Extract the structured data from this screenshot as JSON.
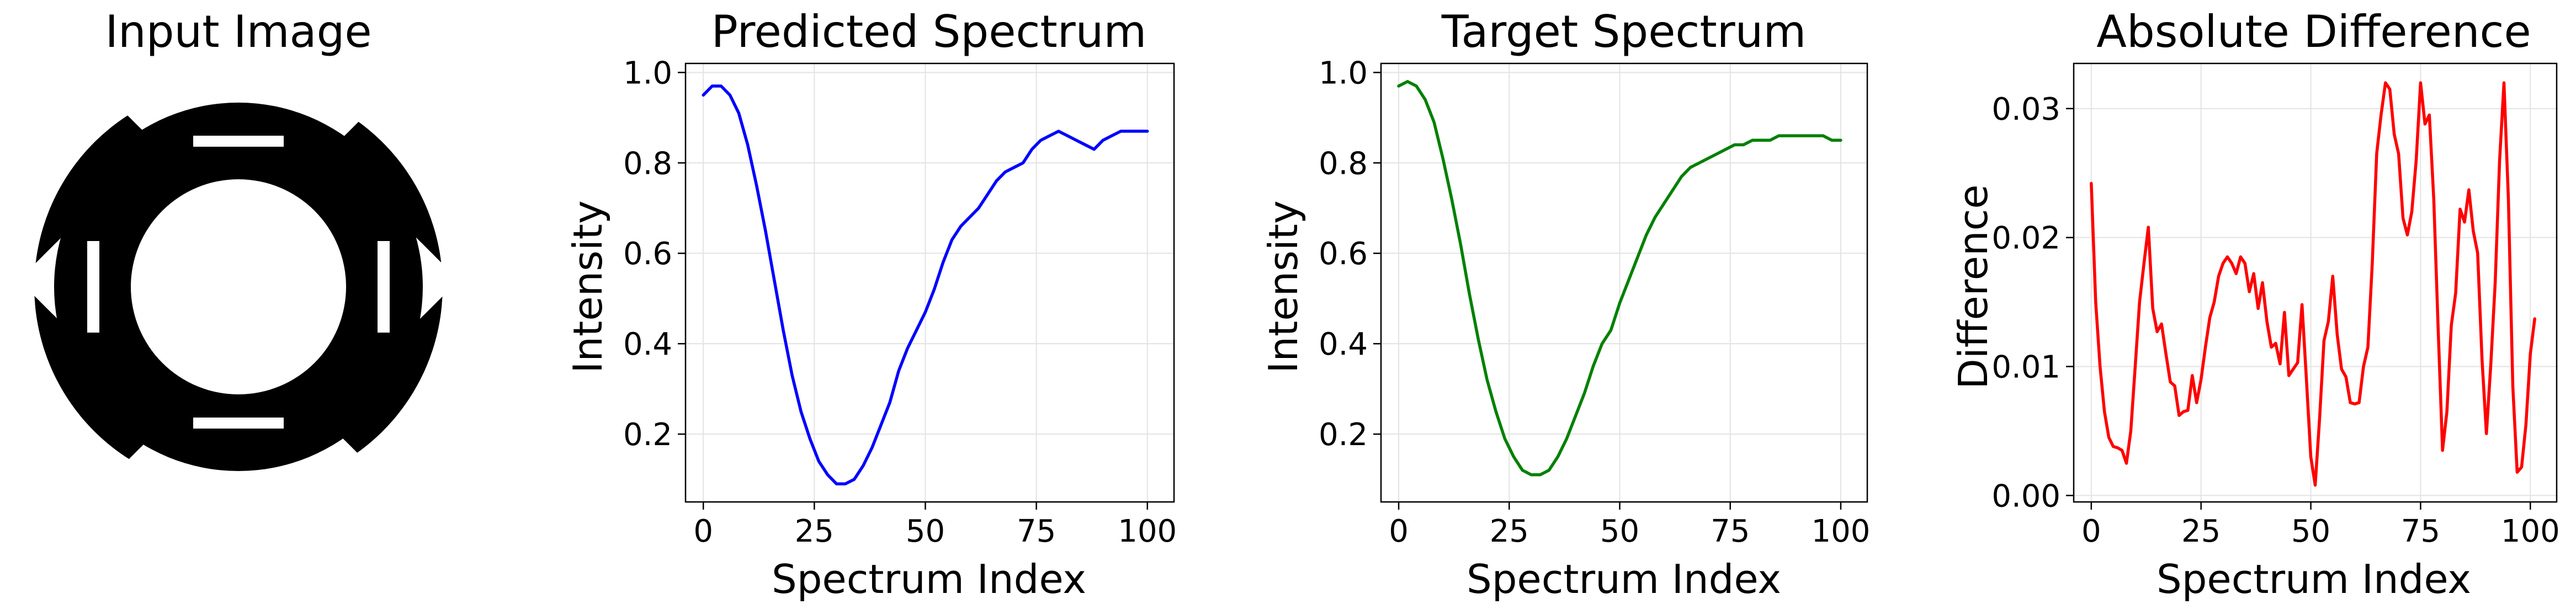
{
  "image_panel": {
    "title": "Input Image"
  },
  "chart_data": [
    {
      "type": "line",
      "title": "Predicted Spectrum",
      "xlabel": "Spectrum Index",
      "ylabel": "Intensity",
      "xlim": [
        -4,
        106
      ],
      "ylim": [
        0.05,
        1.02
      ],
      "xticks": [
        0,
        25,
        50,
        75,
        100
      ],
      "yticks": [
        0.2,
        0.4,
        0.6,
        0.8,
        1.0
      ],
      "ytick_labels": [
        "0.2",
        "0.4",
        "0.6",
        "0.8",
        "1.0"
      ],
      "grid": true,
      "color": "#0000ff",
      "x": [
        0,
        2,
        4,
        6,
        8,
        10,
        12,
        14,
        16,
        18,
        20,
        22,
        24,
        26,
        28,
        30,
        32,
        34,
        36,
        38,
        40,
        42,
        44,
        46,
        48,
        50,
        52,
        54,
        56,
        58,
        60,
        62,
        64,
        66,
        68,
        70,
        72,
        74,
        76,
        78,
        80,
        82,
        84,
        86,
        88,
        90,
        92,
        94,
        96,
        98,
        100
      ],
      "y": [
        0.95,
        0.97,
        0.97,
        0.95,
        0.91,
        0.84,
        0.75,
        0.65,
        0.54,
        0.43,
        0.33,
        0.25,
        0.19,
        0.14,
        0.11,
        0.09,
        0.09,
        0.1,
        0.13,
        0.17,
        0.22,
        0.27,
        0.34,
        0.39,
        0.43,
        0.47,
        0.52,
        0.58,
        0.63,
        0.66,
        0.68,
        0.7,
        0.73,
        0.76,
        0.78,
        0.79,
        0.8,
        0.83,
        0.85,
        0.86,
        0.87,
        0.86,
        0.85,
        0.84,
        0.83,
        0.85,
        0.86,
        0.87,
        0.87,
        0.87,
        0.87
      ]
    },
    {
      "type": "line",
      "title": "Target Spectrum",
      "xlabel": "Spectrum Index",
      "ylabel": "Intensity",
      "xlim": [
        -4,
        106
      ],
      "ylim": [
        0.05,
        1.02
      ],
      "xticks": [
        0,
        25,
        50,
        75,
        100
      ],
      "yticks": [
        0.2,
        0.4,
        0.6,
        0.8,
        1.0
      ],
      "ytick_labels": [
        "0.2",
        "0.4",
        "0.6",
        "0.8",
        "1.0"
      ],
      "grid": true,
      "color": "#008000",
      "x": [
        0,
        2,
        4,
        6,
        8,
        10,
        12,
        14,
        16,
        18,
        20,
        22,
        24,
        26,
        28,
        30,
        32,
        34,
        36,
        38,
        40,
        42,
        44,
        46,
        48,
        50,
        52,
        54,
        56,
        58,
        60,
        62,
        64,
        66,
        68,
        70,
        72,
        74,
        76,
        78,
        80,
        82,
        84,
        86,
        88,
        90,
        92,
        94,
        96,
        98,
        100
      ],
      "y": [
        0.97,
        0.98,
        0.97,
        0.94,
        0.89,
        0.81,
        0.72,
        0.62,
        0.51,
        0.41,
        0.32,
        0.25,
        0.19,
        0.15,
        0.12,
        0.11,
        0.11,
        0.12,
        0.15,
        0.19,
        0.24,
        0.29,
        0.35,
        0.4,
        0.43,
        0.49,
        0.54,
        0.59,
        0.64,
        0.68,
        0.71,
        0.74,
        0.77,
        0.79,
        0.8,
        0.81,
        0.82,
        0.83,
        0.84,
        0.84,
        0.85,
        0.85,
        0.85,
        0.86,
        0.86,
        0.86,
        0.86,
        0.86,
        0.86,
        0.85,
        0.85
      ]
    },
    {
      "type": "line",
      "title": "Absolute Difference",
      "xlabel": "Spectrum Index",
      "ylabel": "Difference",
      "xlim": [
        -4,
        106
      ],
      "ylim": [
        -0.0005,
        0.0335
      ],
      "xticks": [
        0,
        25,
        50,
        75,
        100
      ],
      "yticks": [
        0.0,
        0.01,
        0.02,
        0.03
      ],
      "ytick_labels": [
        "0.00",
        "0.01",
        "0.02",
        "0.03"
      ],
      "grid": true,
      "color": "#ff0000",
      "x": [
        0,
        1,
        2,
        3,
        4,
        5,
        6,
        7,
        8,
        9,
        10,
        11,
        12,
        13,
        14,
        15,
        16,
        17,
        18,
        19,
        20,
        21,
        22,
        23,
        24,
        25,
        26,
        27,
        28,
        29,
        30,
        31,
        32,
        33,
        34,
        35,
        36,
        37,
        38,
        39,
        40,
        41,
        42,
        43,
        44,
        45,
        46,
        47,
        48,
        49,
        50,
        51,
        52,
        53,
        54,
        55,
        56,
        57,
        58,
        59,
        60,
        61,
        62,
        63,
        64,
        65,
        66,
        67,
        68,
        69,
        70,
        71,
        72,
        73,
        74,
        75,
        76,
        77,
        78,
        79,
        80,
        81,
        82,
        83,
        84,
        85,
        86,
        87,
        88,
        89,
        90,
        91,
        92,
        93,
        94,
        95,
        96,
        97,
        98,
        99,
        100,
        101
      ],
      "y": [
        0.0242,
        0.015,
        0.01,
        0.0065,
        0.0045,
        0.0038,
        0.0037,
        0.0035,
        0.0025,
        0.005,
        0.01,
        0.015,
        0.018,
        0.0208,
        0.0145,
        0.0127,
        0.0133,
        0.011,
        0.0088,
        0.0085,
        0.0062,
        0.0065,
        0.0066,
        0.0093,
        0.0072,
        0.009,
        0.0115,
        0.0138,
        0.015,
        0.017,
        0.018,
        0.0185,
        0.018,
        0.0172,
        0.0185,
        0.018,
        0.0158,
        0.0172,
        0.0145,
        0.0165,
        0.0135,
        0.0115,
        0.0118,
        0.0102,
        0.0142,
        0.0093,
        0.0098,
        0.0103,
        0.0148,
        0.009,
        0.003,
        0.0008,
        0.006,
        0.012,
        0.0135,
        0.017,
        0.0125,
        0.0098,
        0.0092,
        0.0072,
        0.0071,
        0.0072,
        0.01,
        0.0115,
        0.018,
        0.0265,
        0.0295,
        0.032,
        0.0315,
        0.028,
        0.0265,
        0.0215,
        0.0202,
        0.022,
        0.026,
        0.032,
        0.0288,
        0.0295,
        0.023,
        0.013,
        0.0035,
        0.0065,
        0.0132,
        0.0157,
        0.0222,
        0.0212,
        0.0237,
        0.0205,
        0.0188,
        0.0105,
        0.0048,
        0.0102,
        0.0165,
        0.026,
        0.032,
        0.023,
        0.0085,
        0.0018,
        0.0022,
        0.0055,
        0.011,
        0.0137
      ]
    }
  ]
}
